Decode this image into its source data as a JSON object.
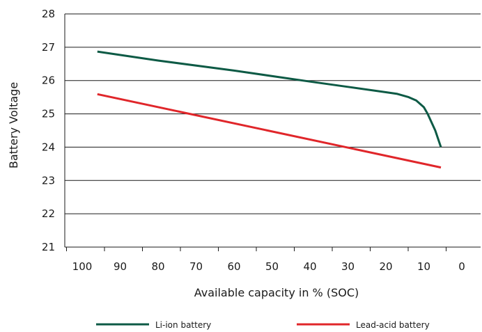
{
  "chart_data": {
    "type": "line",
    "xlabel": "Available capacity in % (SOC)",
    "ylabel": "Battery Voltage",
    "xlim": [
      100,
      0
    ],
    "ylim": [
      21,
      28
    ],
    "x_ticks": [
      "100",
      "90",
      "80",
      "70",
      "60",
      "50",
      "40",
      "30",
      "20",
      "10",
      "0"
    ],
    "y_ticks": [
      "21",
      "22",
      "23",
      "24",
      "25",
      "26",
      "27",
      "28"
    ],
    "grid": "horizontal",
    "legend_position": "bottom",
    "series": [
      {
        "name": "Li-ion battery",
        "color": "#0d5a45",
        "x": [
          96,
          80,
          60,
          40,
          30,
          20,
          17,
          14,
          12,
          10,
          9,
          7,
          5.5
        ],
        "y": [
          26.87,
          26.6,
          26.3,
          25.97,
          25.81,
          25.65,
          25.6,
          25.5,
          25.4,
          25.2,
          25.0,
          24.5,
          24.0
        ]
      },
      {
        "name": "Lead-acid battery",
        "color": "#e0262a",
        "x": [
          96,
          5.5
        ],
        "y": [
          25.59,
          23.39
        ]
      }
    ]
  }
}
